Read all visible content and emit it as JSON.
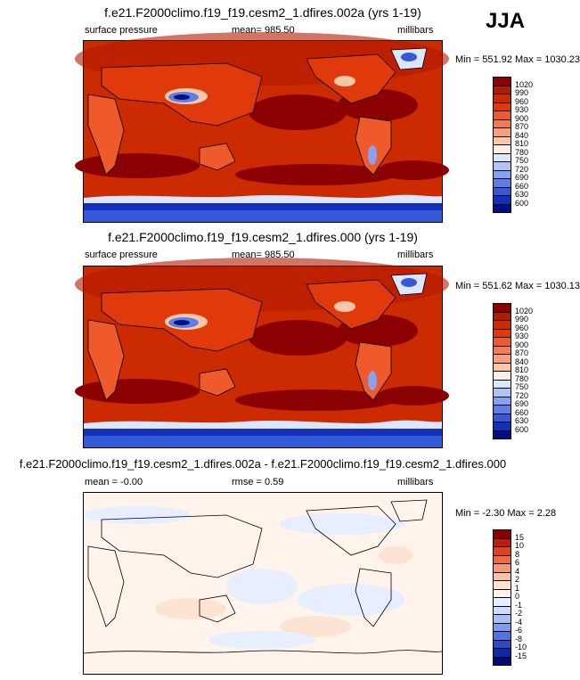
{
  "season": "JJA",
  "panels": [
    {
      "title": "f.e21.F2000climo.f19_f19.cesm2_1.dfires.002a (yrs 1-19)",
      "left": "surface pressure",
      "center": "mean= 985.50",
      "right": "millibars",
      "minmax": "Min = 551.92 Max = 1030.23",
      "colorbar": {
        "labels": [
          "1020",
          "990",
          "960",
          "930",
          "900",
          "870",
          "840",
          "810",
          "780",
          "750",
          "720",
          "690",
          "660",
          "630",
          "600"
        ],
        "colors": [
          "#8b0000",
          "#b31b00",
          "#cc2a00",
          "#e03a0c",
          "#ef5a2a",
          "#f47c4e",
          "#f8a07a",
          "#fbc7a8",
          "#fff0e6",
          "#dce6ff",
          "#b0c4f8",
          "#87a2f0",
          "#5c7fe6",
          "#3458d8",
          "#1530b8",
          "#001080"
        ]
      }
    },
    {
      "title": "f.e21.F2000climo.f19_f19.cesm2_1.dfires.000 (yrs 1-19)",
      "left": "surface pressure",
      "center": "mean= 985.50",
      "right": "millibars",
      "minmax": "Min = 551.62 Max = 1030.13",
      "colorbar": {
        "labels": [
          "1020",
          "990",
          "960",
          "930",
          "900",
          "870",
          "840",
          "810",
          "780",
          "750",
          "720",
          "690",
          "660",
          "630",
          "600"
        ],
        "colors": [
          "#8b0000",
          "#b31b00",
          "#cc2a00",
          "#e03a0c",
          "#ef5a2a",
          "#f47c4e",
          "#f8a07a",
          "#fbc7a8",
          "#fff0e6",
          "#dce6ff",
          "#b0c4f8",
          "#87a2f0",
          "#5c7fe6",
          "#3458d8",
          "#1530b8",
          "#001080"
        ]
      }
    },
    {
      "title": "f.e21.F2000climo.f19_f19.cesm2_1.dfires.002a - f.e21.F2000climo.f19_f19.cesm2_1.dfires.000",
      "left": "mean =  -0.00",
      "center": "rmse =   0.59",
      "right": "millibars",
      "minmax": "Min =  -2.30 Max =   2.28",
      "colorbar": {
        "labels": [
          "15",
          "10",
          "8",
          "6",
          "4",
          "2",
          "1",
          "0",
          "-1",
          "-2",
          "-4",
          "-6",
          "-8",
          "-10",
          "-15"
        ],
        "colors": [
          "#8b0000",
          "#c21a0e",
          "#e0401f",
          "#f06a44",
          "#f79772",
          "#fbc2a4",
          "#fde3d2",
          "#fff4ec",
          "#e6eeff",
          "#cddcfa",
          "#a9c0f4",
          "#7f9cea",
          "#5374dc",
          "#2b4ac6",
          "#1226a6",
          "#000a70"
        ]
      }
    }
  ],
  "chart_data": [
    {
      "type": "heatmap",
      "title": "f.e21.F2000climo.f19_f19.cesm2_1.dfires.002a (yrs 1-19)",
      "variable": "surface pressure",
      "units": "millibars",
      "season": "JJA",
      "mean": 985.5,
      "min": 551.92,
      "max": 1030.23,
      "contour_levels": [
        600,
        630,
        660,
        690,
        720,
        750,
        780,
        810,
        840,
        870,
        900,
        930,
        960,
        990,
        1020
      ]
    },
    {
      "type": "heatmap",
      "title": "f.e21.F2000climo.f19_f19.cesm2_1.dfires.000 (yrs 1-19)",
      "variable": "surface pressure",
      "units": "millibars",
      "season": "JJA",
      "mean": 985.5,
      "min": 551.62,
      "max": 1030.13,
      "contour_levels": [
        600,
        630,
        660,
        690,
        720,
        750,
        780,
        810,
        840,
        870,
        900,
        930,
        960,
        990,
        1020
      ]
    },
    {
      "type": "heatmap",
      "title": "f.e21.F2000climo.f19_f19.cesm2_1.dfires.002a - f.e21.F2000climo.f19_f19.cesm2_1.dfires.000",
      "units": "millibars",
      "season": "JJA",
      "mean": -0.0,
      "rmse": 0.59,
      "min": -2.3,
      "max": 2.28,
      "contour_levels": [
        -15,
        -10,
        -8,
        -6,
        -4,
        -2,
        -1,
        0,
        1,
        2,
        4,
        6,
        8,
        10,
        15
      ]
    }
  ]
}
